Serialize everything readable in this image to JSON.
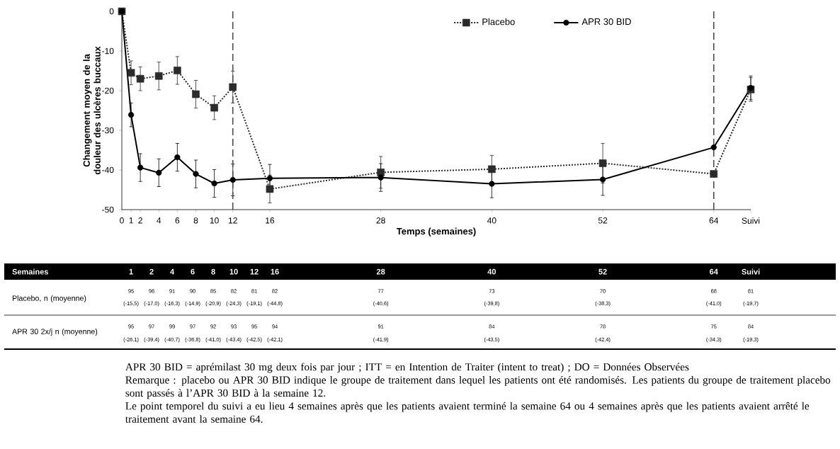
{
  "chart_data": [
    {
      "type": "line",
      "xlabel": "Temps (semaines)",
      "ylabel": "Changement moyen de la douleur des ulcères buccaux",
      "x": [
        0,
        1,
        2,
        4,
        6,
        8,
        10,
        12,
        16,
        28,
        40,
        52,
        64,
        68
      ],
      "xlim": [
        0,
        68
      ],
      "xticks": [
        0,
        1,
        2,
        4,
        6,
        8,
        10,
        12,
        16,
        28,
        40,
        52,
        64,
        {
          "value": 68,
          "label": "Suivi"
        }
      ],
      "ylim": [
        -50,
        0
      ],
      "yticks": [
        -50,
        -40,
        -30,
        -20,
        -10,
        0
      ],
      "series": [
        {
          "name": "Placebo",
          "color": "#2b2b2b",
          "marker": "square",
          "line_style": "dotted",
          "values": [
            0,
            -15.5,
            -17.0,
            -16.3,
            -14.9,
            -20.9,
            -24.3,
            -19.1,
            -44.8,
            -40.6,
            -39.8,
            -38.3,
            -41.0,
            -19.7
          ],
          "errors": [
            null,
            3,
            3,
            3.5,
            3.5,
            3.5,
            3,
            4,
            3.5,
            4,
            3.5,
            5,
            null,
            3
          ]
        },
        {
          "name": "APR 30 BID",
          "color": "#000000",
          "marker": "circle",
          "line_style": "solid",
          "values": [
            0,
            -26.1,
            -39.4,
            -40.7,
            -36.8,
            -41.0,
            -43.4,
            -42.5,
            -42.1,
            -41.9,
            -43.5,
            -42.4,
            -34.3,
            -19.3
          ],
          "errors": [
            null,
            3,
            3.5,
            3.5,
            3.5,
            3.5,
            3.5,
            4,
            3.5,
            3.5,
            3.5,
            4,
            null,
            3
          ]
        }
      ],
      "ref_lines": [
        {
          "axis": "x",
          "value": 12,
          "line_style": "dashed"
        },
        {
          "axis": "x",
          "value": 64,
          "line_style": "dashed"
        }
      ],
      "legend": "top right",
      "annotations": [
        "APR 30 BID = aprémilast 30 mg deux fois par jour ; ITT = en Intention de Traiter (intent to treat) ; DO = Données Observées",
        "Remarque : placebo ou APR 30 BID indique le groupe de traitement dans lequel les patients ont été randomisés. Les patients du groupe de traitement placebo sont passés à l’APR 30 BID à la semaine 12.",
        "Le point temporel du suivi a eu lieu 4 semaines après que les patients avaient terminé la semaine 64 ou 4 semaines après que les patients avaient arrêté le traitement avant la semaine 64."
      ]
    },
    {
      "type": "other",
      "xlabel": "Semaines",
      "categories": [
        "1",
        "2",
        "4",
        "6",
        "8",
        "10",
        "12",
        "16",
        "28",
        "40",
        "52",
        "64",
        "Suivi"
      ],
      "series": [
        {
          "name": "Placebo, n (moyenne)",
          "values": [
            95,
            96,
            91,
            90,
            85,
            82,
            81,
            82,
            77,
            73,
            70,
            68,
            81
          ]
        },
        {
          "values": [
            -15.5,
            -17.0,
            -16.3,
            -14.9,
            -20.9,
            -24.3,
            -19.1,
            -44.8,
            -40.6,
            -39.8,
            -38.3,
            -41.0,
            -19.7
          ],
          "value_labels": [
            "(-15,5)",
            "(-17,0)",
            "(-16,3)",
            "(-14,9)",
            "(-20,9)",
            "(-24,3)",
            "(-19,1)",
            "(-44,8)",
            "(-40,6)",
            "(-39,8)",
            "(-38,3)",
            "(-41,0)",
            "(-19,7)"
          ]
        },
        {
          "name": "APR 30 2x/j n (moyenne)",
          "values": [
            95,
            97,
            99,
            97,
            92,
            93,
            95,
            94,
            91,
            84,
            78,
            75,
            84
          ]
        },
        {
          "values": [
            -26.1,
            -39.4,
            -40.7,
            -36.8,
            -41.0,
            -43.4,
            -42.5,
            -42.1,
            -41.9,
            -43.5,
            -42.4,
            -34.3,
            -19.3
          ],
          "value_labels": [
            "(-26,1)",
            "(-39,4)",
            "(-40,7)",
            "(-36,8)",
            "(-41,0)",
            "(-43,4)",
            "(-42,5)",
            "(-42,1)",
            "(-41,9)",
            "(-43,5)",
            "(-42,4)",
            "(-34,3)",
            "(-19,3)"
          ]
        }
      ],
      "data_labels": true
    }
  ]
}
